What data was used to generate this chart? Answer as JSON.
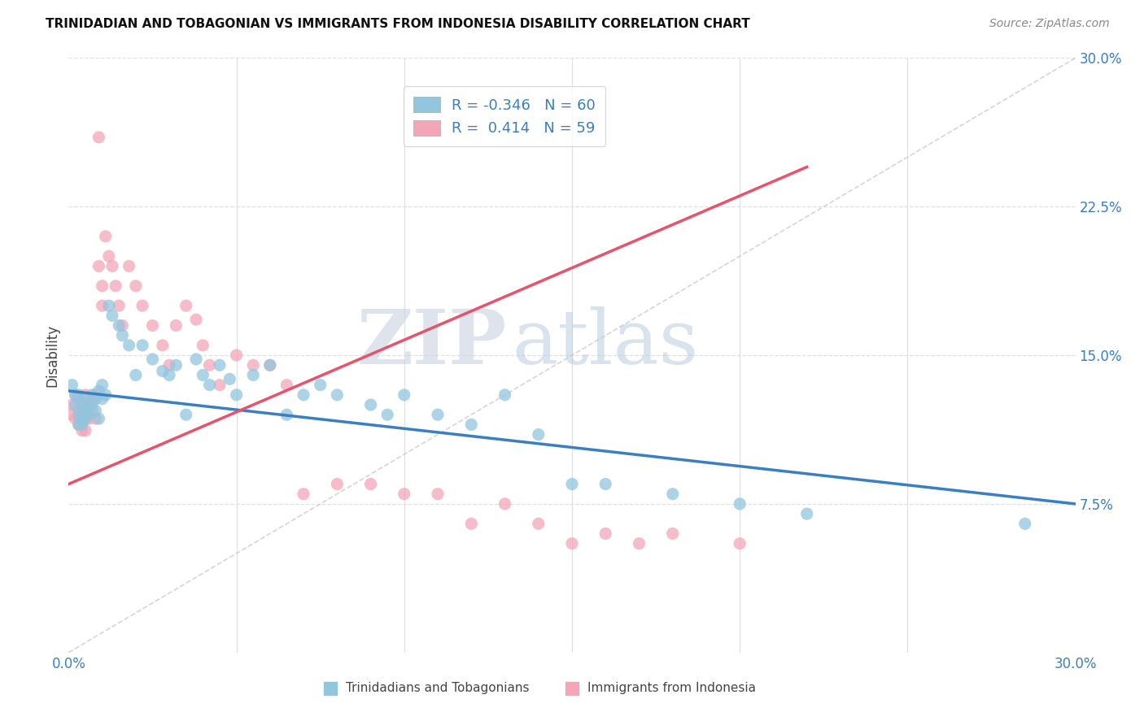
{
  "title": "TRINIDADIAN AND TOBAGONIAN VS IMMIGRANTS FROM INDONESIA DISABILITY CORRELATION CHART",
  "source": "Source: ZipAtlas.com",
  "ylabel": "Disability",
  "x_min": 0.0,
  "x_max": 0.3,
  "y_min": 0.0,
  "y_max": 0.3,
  "blue_color": "#92c5de",
  "pink_color": "#f4a6b8",
  "blue_line_color": "#3a7fc1",
  "pink_line_color": "#e8526a",
  "diagonal_color": "#cccccc",
  "watermark_zip": "ZIP",
  "watermark_atlas": "atlas",
  "bg_color": "#ffffff",
  "grid_color": "#e0e0e0",
  "blue_line_x0": 0.0,
  "blue_line_y0": 0.132,
  "blue_line_x1": 0.3,
  "blue_line_y1": 0.075,
  "pink_line_x0": 0.0,
  "pink_line_y0": 0.085,
  "pink_line_x1": 0.22,
  "pink_line_y1": 0.245,
  "blue_scatter_x": [
    0.001,
    0.002,
    0.002,
    0.003,
    0.003,
    0.003,
    0.004,
    0.004,
    0.004,
    0.005,
    0.005,
    0.005,
    0.006,
    0.006,
    0.007,
    0.007,
    0.008,
    0.008,
    0.009,
    0.009,
    0.01,
    0.01,
    0.011,
    0.012,
    0.013,
    0.015,
    0.016,
    0.018,
    0.02,
    0.022,
    0.025,
    0.028,
    0.03,
    0.032,
    0.035,
    0.038,
    0.04,
    0.042,
    0.045,
    0.048,
    0.05,
    0.055,
    0.06,
    0.065,
    0.07,
    0.075,
    0.08,
    0.09,
    0.095,
    0.1,
    0.11,
    0.12,
    0.13,
    0.14,
    0.15,
    0.16,
    0.18,
    0.2,
    0.22,
    0.285
  ],
  "blue_scatter_y": [
    0.135,
    0.13,
    0.125,
    0.12,
    0.115,
    0.13,
    0.125,
    0.12,
    0.115,
    0.128,
    0.122,
    0.118,
    0.125,
    0.12,
    0.13,
    0.125,
    0.128,
    0.122,
    0.132,
    0.118,
    0.135,
    0.128,
    0.13,
    0.175,
    0.17,
    0.165,
    0.16,
    0.155,
    0.14,
    0.155,
    0.148,
    0.142,
    0.14,
    0.145,
    0.12,
    0.148,
    0.14,
    0.135,
    0.145,
    0.138,
    0.13,
    0.14,
    0.145,
    0.12,
    0.13,
    0.135,
    0.13,
    0.125,
    0.12,
    0.13,
    0.12,
    0.115,
    0.13,
    0.11,
    0.085,
    0.085,
    0.08,
    0.075,
    0.07,
    0.065
  ],
  "pink_scatter_x": [
    0.001,
    0.001,
    0.002,
    0.002,
    0.003,
    0.003,
    0.003,
    0.004,
    0.004,
    0.004,
    0.005,
    0.005,
    0.005,
    0.005,
    0.006,
    0.006,
    0.007,
    0.007,
    0.008,
    0.008,
    0.009,
    0.009,
    0.01,
    0.01,
    0.011,
    0.012,
    0.013,
    0.014,
    0.015,
    0.016,
    0.018,
    0.02,
    0.022,
    0.025,
    0.028,
    0.03,
    0.032,
    0.035,
    0.038,
    0.04,
    0.042,
    0.045,
    0.05,
    0.055,
    0.06,
    0.065,
    0.07,
    0.08,
    0.09,
    0.1,
    0.11,
    0.12,
    0.13,
    0.14,
    0.15,
    0.16,
    0.17,
    0.18,
    0.2
  ],
  "pink_scatter_y": [
    0.125,
    0.12,
    0.13,
    0.118,
    0.128,
    0.122,
    0.115,
    0.125,
    0.118,
    0.112,
    0.13,
    0.122,
    0.118,
    0.112,
    0.125,
    0.118,
    0.128,
    0.122,
    0.13,
    0.118,
    0.26,
    0.195,
    0.185,
    0.175,
    0.21,
    0.2,
    0.195,
    0.185,
    0.175,
    0.165,
    0.195,
    0.185,
    0.175,
    0.165,
    0.155,
    0.145,
    0.165,
    0.175,
    0.168,
    0.155,
    0.145,
    0.135,
    0.15,
    0.145,
    0.145,
    0.135,
    0.08,
    0.085,
    0.085,
    0.08,
    0.08,
    0.065,
    0.075,
    0.065,
    0.055,
    0.06,
    0.055,
    0.06,
    0.055
  ]
}
